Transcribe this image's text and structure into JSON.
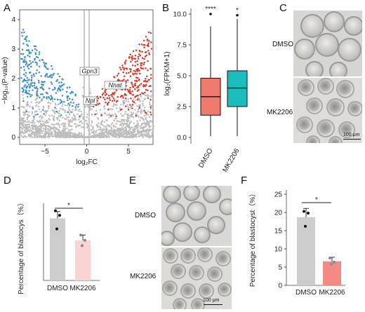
{
  "panels": {
    "A": "A",
    "B": "B",
    "C": "C",
    "D": "D",
    "E": "E",
    "F": "F"
  },
  "volcano": {
    "xlabel": "log₂FC",
    "ylabel": "−log₁₀(P-value)",
    "xticks": [
      "−5",
      "0",
      "5"
    ],
    "yticks": [
      "0",
      "1",
      "2",
      "3",
      "4"
    ],
    "genes": [
      "Gpn3",
      "Nnat",
      "Npl"
    ],
    "colors": {
      "down": "#3a8fc6",
      "up": "#d23a2c",
      "ns": "#bdbdbd"
    }
  },
  "chart_data": [
    {
      "type": "box",
      "panel": "B",
      "categories": [
        "DMSO",
        "MK2206"
      ],
      "ylabel": "log₂(FPKM+1)",
      "ylim": [
        -0.5,
        10.5
      ],
      "yticks": [
        "0.0",
        "2.5",
        "5.0",
        "7.5",
        "10.0"
      ],
      "boxes": [
        {
          "name": "DMSO",
          "whisker_low": 0.1,
          "q1": 1.8,
          "median": 3.3,
          "q3": 4.8,
          "whisker_high": 9.0,
          "outlier": 10.0,
          "color": "#f07a6e"
        },
        {
          "name": "MK2206",
          "whisker_low": 0.1,
          "q1": 2.5,
          "median": 4.0,
          "q3": 5.4,
          "whisker_high": 9.6,
          "outlier": 9.9,
          "color": "#1bbcbc"
        }
      ],
      "annotations": {
        "DMSO": "****",
        "MK2206": "*"
      }
    },
    {
      "type": "bar",
      "panel": "D",
      "categories": [
        "DMSO",
        "MK2206"
      ],
      "values": [
        82,
        53
      ],
      "errors": [
        9,
        7
      ],
      "points": [
        [
          92,
          86,
          68
        ],
        [
          60,
          53,
          46
        ]
      ],
      "ylabel": "Percentage of blastocys（%）",
      "ylim": [
        0,
        100
      ],
      "significance": "*",
      "colors": [
        "#cccccc",
        "#f9d3d1"
      ]
    },
    {
      "type": "bar",
      "panel": "F",
      "categories": [
        "DMSO",
        "MK2206"
      ],
      "values": [
        18.7,
        6.6
      ],
      "errors": [
        2.4,
        1.1
      ],
      "points": [
        [
          20.3,
          19.8,
          16.2
        ],
        [
          7.5,
          6.4,
          5.8
        ]
      ],
      "ylabel": "Percentage of blastocyst（%）",
      "ylim": [
        0,
        25
      ],
      "yticks": [
        "0",
        "5",
        "10",
        "15",
        "20",
        "25"
      ],
      "significance": "*",
      "colors": [
        "#cccccc",
        "#f28a86"
      ]
    }
  ],
  "micrographs": {
    "C": {
      "top": "DMSO",
      "bottom": "MK2206",
      "scale": "100 μm"
    },
    "E": {
      "top": "DMSO",
      "bottom": "MK2206",
      "scale": "100 μm"
    }
  }
}
